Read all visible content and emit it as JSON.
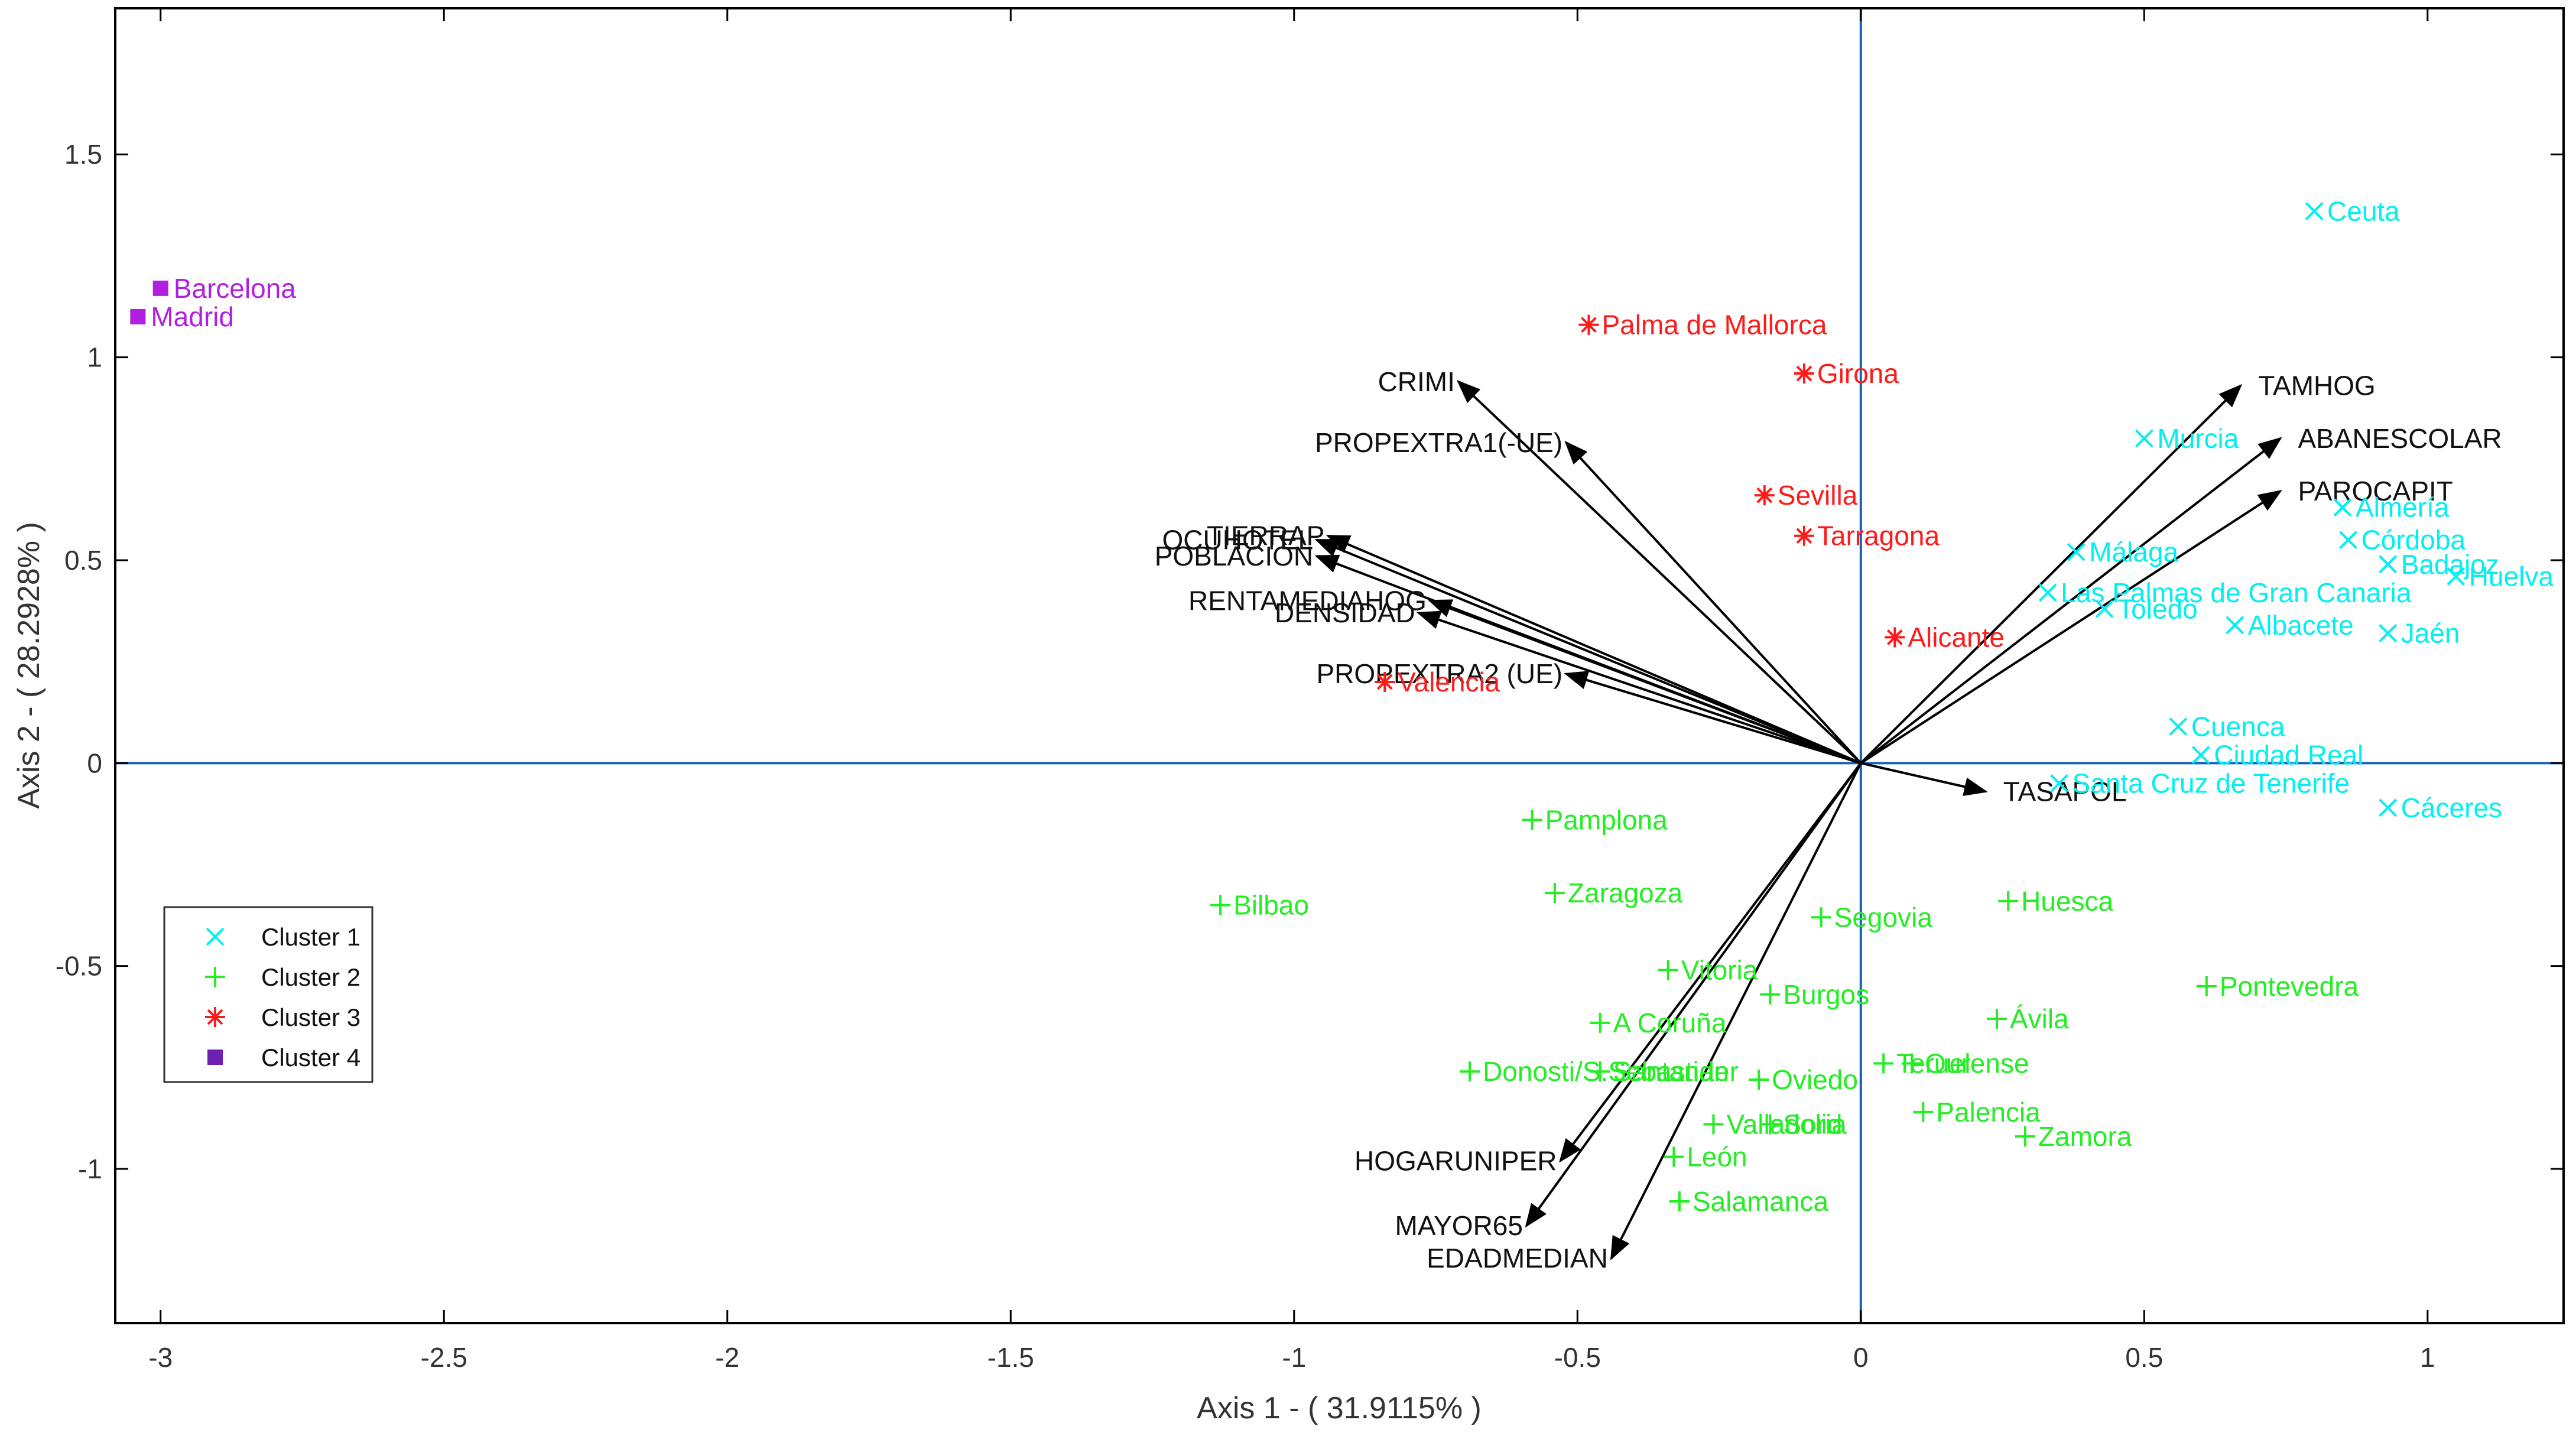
{
  "chart_data": {
    "type": "scatter",
    "title": "",
    "xlabel": "Axis 1 - ( 31.9115% )",
    "ylabel": "Axis 2 - ( 28.2928% )",
    "xlim": [
      -3.08,
      1.24
    ],
    "ylim": [
      -1.38,
      1.86
    ],
    "x_ticks": [
      -3,
      -2.5,
      -2,
      -1.5,
      -1,
      -0.5,
      0,
      0.5,
      1
    ],
    "x_tick_labels": [
      "-3",
      "-2.5",
      "-2",
      "-1.5",
      "-1",
      "-0.5",
      "0",
      "0.5",
      "1"
    ],
    "y_ticks": [
      -1,
      -0.5,
      0,
      0.5,
      1,
      1.5
    ],
    "y_tick_labels": [
      "-1",
      "-0.5",
      "0",
      "0.5",
      "1",
      "1.5"
    ],
    "grid": false,
    "colors": {
      "cluster1": "#00f0f0",
      "cluster2": "#22ee22",
      "cluster3": "#ff1a1a",
      "cluster4": "#b020e0",
      "cluster4_legend": "#7020b0",
      "axis_lines": "#1560bd",
      "vectors": "#000000",
      "frame": "#000000"
    },
    "legend": {
      "position": "lower-left",
      "entries": [
        {
          "label": "Cluster 1",
          "marker": "x",
          "color": "#00f0f0"
        },
        {
          "label": "Cluster 2",
          "marker": "+",
          "color": "#22ee22"
        },
        {
          "label": "Cluster 3",
          "marker": "*",
          "color": "#ff1a1a"
        },
        {
          "label": "Cluster 4",
          "marker": "square",
          "color": "#7020b0"
        }
      ]
    },
    "series": [
      {
        "name": "Cluster 1",
        "marker": "x",
        "color": "#00f0f0",
        "points": [
          {
            "label": "Ceuta",
            "x": 0.8,
            "y": 1.36
          },
          {
            "label": "Murcia",
            "x": 0.5,
            "y": 0.8
          },
          {
            "label": "Almería",
            "x": 0.85,
            "y": 0.63
          },
          {
            "label": "Córdoba",
            "x": 0.86,
            "y": 0.55
          },
          {
            "label": "Málaga",
            "x": 0.38,
            "y": 0.52
          },
          {
            "label": "Badajoz",
            "x": 0.93,
            "y": 0.49
          },
          {
            "label": "Huelva",
            "x": 1.05,
            "y": 0.46
          },
          {
            "label": "Las Palmas de Gran Canaria",
            "x": 0.33,
            "y": 0.42
          },
          {
            "label": "Toledo",
            "x": 0.43,
            "y": 0.38
          },
          {
            "label": "Albacete",
            "x": 0.66,
            "y": 0.34
          },
          {
            "label": "Jaén",
            "x": 0.93,
            "y": 0.32
          },
          {
            "label": "Cuenca",
            "x": 0.56,
            "y": 0.09
          },
          {
            "label": "Ciudad Real",
            "x": 0.6,
            "y": 0.02
          },
          {
            "label": "Santa Cruz de Tenerife",
            "x": 0.35,
            "y": -0.05
          },
          {
            "label": "Cáceres",
            "x": 0.93,
            "y": -0.11
          }
        ]
      },
      {
        "name": "Cluster 2",
        "marker": "+",
        "color": "#22ee22",
        "points": [
          {
            "label": "Pamplona",
            "x": -0.58,
            "y": -0.14
          },
          {
            "label": "Bilbao",
            "x": -1.13,
            "y": -0.35
          },
          {
            "label": "Zaragoza",
            "x": -0.54,
            "y": -0.32
          },
          {
            "label": "Segovia",
            "x": -0.07,
            "y": -0.38
          },
          {
            "label": "Huesca",
            "x": 0.26,
            "y": -0.34
          },
          {
            "label": "Vitoria",
            "x": -0.34,
            "y": -0.51
          },
          {
            "label": "Burgos",
            "x": -0.16,
            "y": -0.57
          },
          {
            "label": "Pontevedra",
            "x": 0.61,
            "y": -0.55
          },
          {
            "label": "A Coruña",
            "x": -0.46,
            "y": -0.64
          },
          {
            "label": "Ávila",
            "x": 0.24,
            "y": -0.63
          },
          {
            "label": "Teruel",
            "x": 0.04,
            "y": -0.74
          },
          {
            "label": "Ourense",
            "x": 0.09,
            "y": -0.74
          },
          {
            "label": "Donosti/S.Sebastian",
            "x": -0.69,
            "y": -0.76
          },
          {
            "label": "Santander",
            "x": -0.46,
            "y": -0.76
          },
          {
            "label": "Oviedo",
            "x": -0.18,
            "y": -0.78
          },
          {
            "label": "Palencia",
            "x": 0.11,
            "y": -0.86
          },
          {
            "label": "Zamora",
            "x": 0.29,
            "y": -0.92
          },
          {
            "label": "Valladolid",
            "x": -0.26,
            "y": -0.89
          },
          {
            "label": "Soria",
            "x": -0.16,
            "y": -0.89
          },
          {
            "label": "León",
            "x": -0.33,
            "y": -0.97
          },
          {
            "label": "Salamanca",
            "x": -0.32,
            "y": -1.08
          }
        ]
      },
      {
        "name": "Cluster 3",
        "marker": "*",
        "color": "#ff1a1a",
        "points": [
          {
            "label": "Palma de Mallorca",
            "x": -0.48,
            "y": 1.08
          },
          {
            "label": "Girona",
            "x": -0.1,
            "y": 0.96
          },
          {
            "label": "Sevilla",
            "x": -0.17,
            "y": 0.66
          },
          {
            "label": "Tarragona",
            "x": -0.1,
            "y": 0.56
          },
          {
            "label": "Alicante",
            "x": 0.06,
            "y": 0.31
          },
          {
            "label": "Valencia",
            "x": -0.84,
            "y": 0.2
          }
        ]
      },
      {
        "name": "Cluster 4",
        "marker": "square",
        "color": "#b020e0",
        "points": [
          {
            "label": "Barcelona",
            "x": -3.0,
            "y": 1.17
          },
          {
            "label": "Madrid",
            "x": -3.04,
            "y": 1.1
          }
        ]
      }
    ],
    "vectors": [
      {
        "label": "TAMHOG",
        "x": 0.67,
        "y": 0.93
      },
      {
        "label": "ABANESCOLAR",
        "x": 0.74,
        "y": 0.8
      },
      {
        "label": "PAROCAPIT",
        "x": 0.74,
        "y": 0.67
      },
      {
        "label": "TASAPOL",
        "x": 0.22,
        "y": -0.07
      },
      {
        "label": "CRIMI",
        "x": -0.71,
        "y": 0.94
      },
      {
        "label": "PROPEXTRA1(-UE)",
        "x": -0.52,
        "y": 0.79
      },
      {
        "label": "OCUHOTEL",
        "x": -0.96,
        "y": 0.55
      },
      {
        "label": "TIERRAP",
        "x": -0.94,
        "y": 0.56
      },
      {
        "label": "POBLACION",
        "x": -0.96,
        "y": 0.51
      },
      {
        "label": "RENTAMEDIAHOG",
        "x": -0.76,
        "y": 0.4
      },
      {
        "label": "DENSIDAD",
        "x": -0.78,
        "y": 0.37
      },
      {
        "label": "PROPEXTRA2 (UE)",
        "x": -0.52,
        "y": 0.22
      },
      {
        "label": "HOGARUNIPER",
        "x": -0.53,
        "y": -0.98
      },
      {
        "label": "MAYOR65",
        "x": -0.59,
        "y": -1.14
      },
      {
        "label": "EDADMEDIAN",
        "x": -0.44,
        "y": -1.22
      }
    ]
  }
}
